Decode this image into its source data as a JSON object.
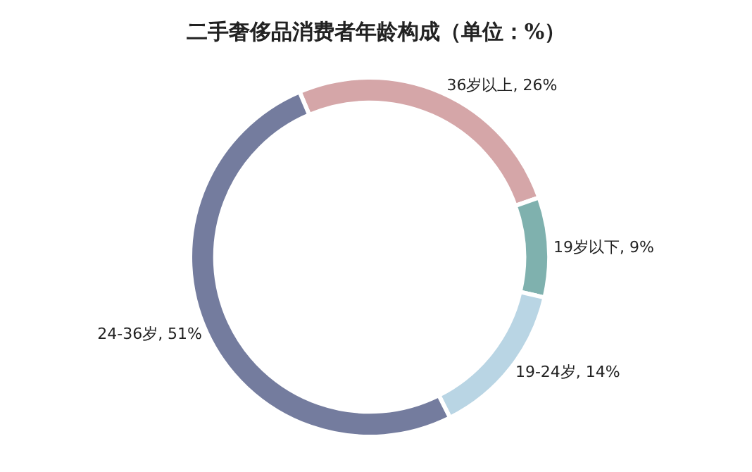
{
  "chart_data": {
    "type": "donut",
    "title": "二手奢侈品消费者年龄构成（单位：%）",
    "categories": [
      "36岁以上",
      "19岁以下",
      "19-24岁",
      "24-36岁"
    ],
    "values": [
      26,
      9,
      14,
      51
    ],
    "colors": [
      "#d5a6a8",
      "#7fb1ae",
      "#b9d5e4",
      "#747c9e"
    ],
    "value_labels": [
      ", 26%",
      ", 9%",
      ", 14%",
      ", 51%"
    ],
    "legend": false
  }
}
